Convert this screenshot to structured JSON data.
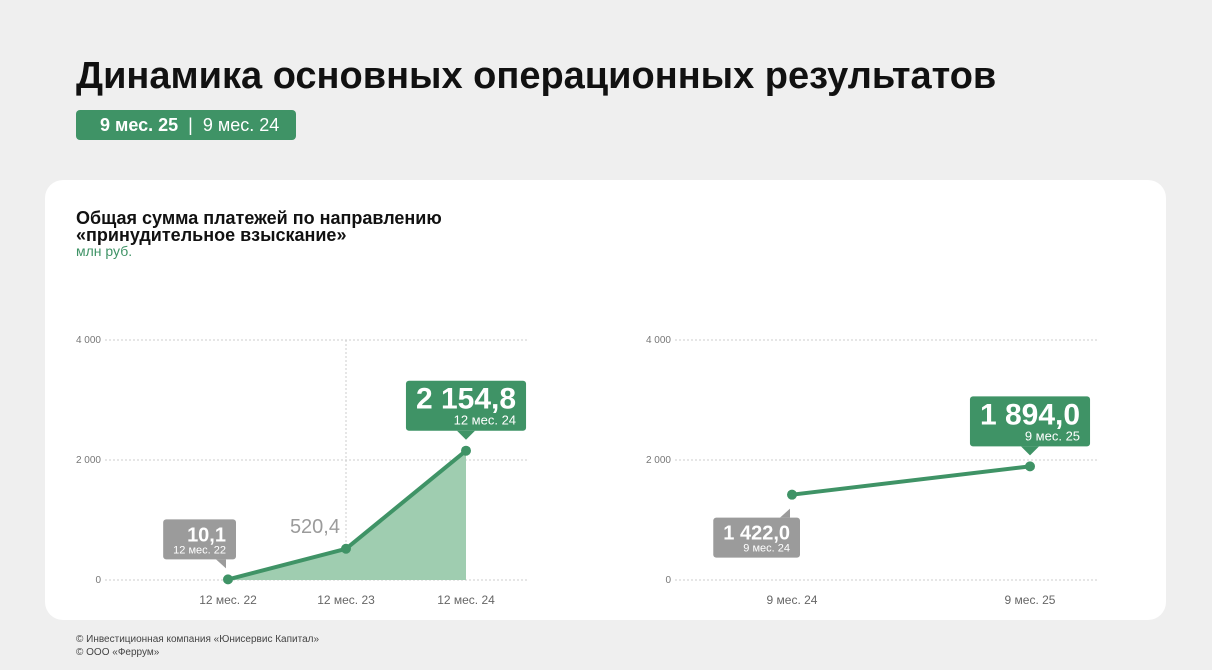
{
  "title": "Динамика основных операционных результатов",
  "period_tag": {
    "active": "9 мес. 25",
    "separator": "|",
    "other": "9 мес. 24"
  },
  "card": {
    "title_lines": [
      "Общая сумма платежей по направлению",
      "«принудительное взыскание»"
    ],
    "unit": "млн руб."
  },
  "footer": [
    "© Инвестиционная компания «Юнисервис Капитал»",
    "© ООО «Феррум»"
  ],
  "chart_data": [
    {
      "type": "area",
      "categories": [
        "12 мес. 22",
        "12 мес. 23",
        "12 мес. 24"
      ],
      "values": [
        10.1,
        520.4,
        2154.8
      ],
      "value_labels": [
        "10,1",
        "520,4",
        "2 154,8"
      ],
      "color": "#3f9366",
      "fill_color": "#9fcdb0",
      "ylim": [
        0,
        4000
      ],
      "yticks": [
        0,
        {
          "value": 2000,
          "label": "2 000"
        },
        {
          "value": 4000,
          "label": "4 000"
        }
      ],
      "grid": true
    },
    {
      "type": "line",
      "categories": [
        "9 мес. 24",
        "9 мес. 25"
      ],
      "values": [
        1422.0,
        1894.0
      ],
      "value_labels": [
        "1 422,0",
        "1 894,0"
      ],
      "color": "#3f9366",
      "ylim": [
        0,
        4000
      ],
      "yticks": [
        0,
        {
          "value": 2000,
          "label": "2 000"
        },
        {
          "value": 4000,
          "label": "4 000"
        }
      ],
      "grid": true
    }
  ]
}
